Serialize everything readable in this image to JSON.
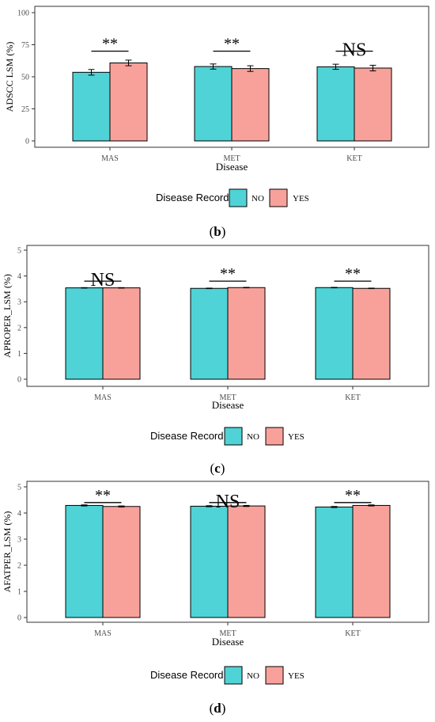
{
  "colors": {
    "no": "#4fd3d6",
    "yes": "#f8a19b",
    "axis": "#333333"
  },
  "legend": {
    "title": "Disease Record",
    "no_label": "NO",
    "yes_label": "YES"
  },
  "chart_data": [
    {
      "type": "bar",
      "panel_label": "b",
      "ylabel": "ADSCC LSM (%)",
      "xlabel": "Disease",
      "ylim": [
        0,
        100
      ],
      "yticks": [
        "0",
        "25",
        "50",
        "75",
        "100"
      ],
      "ytick_values": [
        0,
        25,
        50,
        75,
        100
      ],
      "categories": [
        "MAS",
        "MET",
        "KET"
      ],
      "series": [
        {
          "name": "NO",
          "values": [
            53.5,
            58.0,
            57.8
          ],
          "errors": [
            2.2,
            2.0,
            2.0
          ]
        },
        {
          "name": "YES",
          "values": [
            60.8,
            56.4,
            56.8
          ],
          "errors": [
            2.2,
            2.2,
            2.2
          ]
        }
      ],
      "significance": [
        "**",
        "**",
        "NS"
      ],
      "sig_y": [
        70,
        70,
        70
      ]
    },
    {
      "type": "bar",
      "panel_label": "c",
      "ylabel": "APROPER_LSM (%)",
      "xlabel": "Disease",
      "ylim": [
        0,
        5
      ],
      "yticks": [
        "0",
        "1",
        "2",
        "3",
        "4",
        "5"
      ],
      "ytick_values": [
        0,
        1,
        2,
        3,
        4,
        5
      ],
      "categories": [
        "MAS",
        "MET",
        "KET"
      ],
      "series": [
        {
          "name": "NO",
          "values": [
            3.54,
            3.52,
            3.55
          ],
          "errors": [
            0.01,
            0.01,
            0.01
          ]
        },
        {
          "name": "YES",
          "values": [
            3.54,
            3.55,
            3.52
          ],
          "errors": [
            0.01,
            0.01,
            0.01
          ]
        }
      ],
      "significance": [
        "NS",
        "**",
        "**"
      ],
      "sig_y": [
        3.8,
        3.8,
        3.8
      ]
    },
    {
      "type": "bar",
      "panel_label": "d",
      "ylabel": "AFATPER_LSM (%)",
      "xlabel": "Disease",
      "ylim": [
        0,
        5
      ],
      "yticks": [
        "0",
        "1",
        "2",
        "3",
        "4",
        "5"
      ],
      "ytick_values": [
        0,
        1,
        2,
        3,
        4,
        5
      ],
      "categories": [
        "MAS",
        "MET",
        "KET"
      ],
      "series": [
        {
          "name": "NO",
          "values": [
            4.29,
            4.26,
            4.23
          ],
          "errors": [
            0.02,
            0.02,
            0.02
          ]
        },
        {
          "name": "YES",
          "values": [
            4.25,
            4.27,
            4.29
          ],
          "errors": [
            0.02,
            0.02,
            0.02
          ]
        }
      ],
      "significance": [
        "**",
        "NS",
        "**"
      ],
      "sig_y": [
        4.4,
        4.4,
        4.4
      ]
    }
  ]
}
